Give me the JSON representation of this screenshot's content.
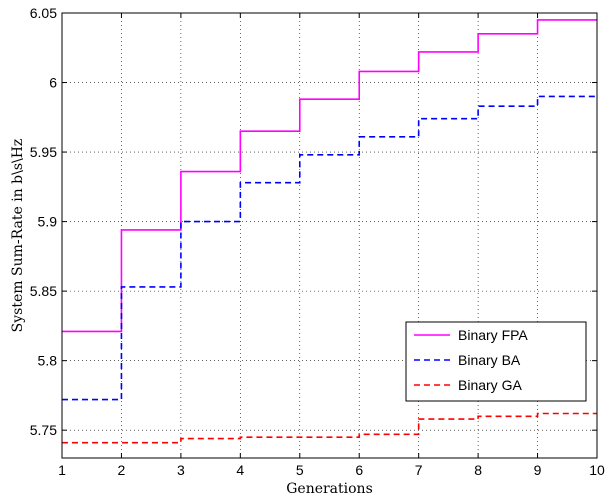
{
  "chart_data": {
    "type": "line",
    "title": "",
    "xlabel": "Generations",
    "ylabel": "System Sum-Rate in b\\s\\Hz",
    "xlim": [
      1,
      10
    ],
    "ylim": [
      5.73,
      6.05
    ],
    "x_ticks": [
      1,
      2,
      3,
      4,
      5,
      6,
      7,
      8,
      9,
      10
    ],
    "y_ticks": [
      5.75,
      5.8,
      5.85,
      5.9,
      5.95,
      6.0,
      6.05
    ],
    "y_tick_labels": [
      "5.75",
      "5.8",
      "5.85",
      "5.9",
      "5.95",
      "6",
      "6.05"
    ],
    "grid": true,
    "line_shape": "step",
    "legend_position": "bottom-right",
    "x": [
      1,
      2,
      3,
      4,
      5,
      6,
      7,
      8,
      9,
      10
    ],
    "series": [
      {
        "name": "Binary FPA",
        "color": "#ff00ff",
        "style": "solid",
        "values": [
          5.821,
          5.894,
          5.936,
          5.965,
          5.988,
          6.008,
          6.022,
          6.035,
          6.045,
          6.045
        ]
      },
      {
        "name": "Binary BA",
        "color": "#0000ff",
        "style": "dashed",
        "values": [
          5.772,
          5.853,
          5.9,
          5.928,
          5.948,
          5.961,
          5.974,
          5.983,
          5.99,
          5.99
        ]
      },
      {
        "name": "Binary GA",
        "color": "#ff0000",
        "style": "dashed",
        "values": [
          5.741,
          5.741,
          5.744,
          5.745,
          5.745,
          5.747,
          5.758,
          5.76,
          5.762,
          5.762
        ]
      }
    ]
  }
}
